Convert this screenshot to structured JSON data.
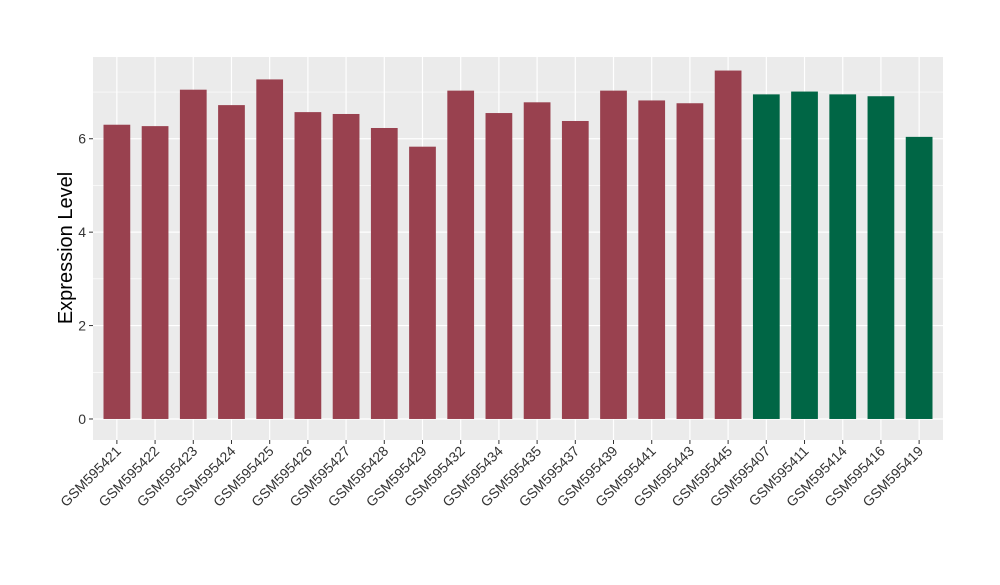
{
  "chart_data": {
    "type": "bar",
    "ylabel": "Expression Level",
    "xlabel": "",
    "title": "",
    "ylim": [
      -0.45,
      7.75
    ],
    "yticks": [
      0,
      2,
      4,
      6
    ],
    "grid": true,
    "categories": [
      "GSM595421",
      "GSM595422",
      "GSM595423",
      "GSM595424",
      "GSM595425",
      "GSM595426",
      "GSM595427",
      "GSM595428",
      "GSM595429",
      "GSM595432",
      "GSM595434",
      "GSM595435",
      "GSM595437",
      "GSM595439",
      "GSM595441",
      "GSM595443",
      "GSM595445",
      "GSM595407",
      "GSM595411",
      "GSM595414",
      "GSM595416",
      "GSM595419"
    ],
    "values": [
      6.3,
      6.27,
      7.05,
      6.72,
      7.27,
      6.57,
      6.53,
      6.23,
      5.83,
      7.03,
      6.55,
      6.78,
      6.38,
      7.03,
      6.82,
      6.76,
      7.46,
      6.95,
      7.01,
      6.95,
      6.91,
      6.04
    ],
    "groups": [
      0,
      0,
      0,
      0,
      0,
      0,
      0,
      0,
      0,
      0,
      0,
      0,
      0,
      0,
      0,
      0,
      0,
      1,
      1,
      1,
      1,
      1
    ],
    "colors": {
      "group0": "#99414f",
      "group1": "#006645",
      "panel": "#ebebeb",
      "grid": "#ffffff",
      "text": "#000000",
      "tick_text": "#333333"
    }
  }
}
